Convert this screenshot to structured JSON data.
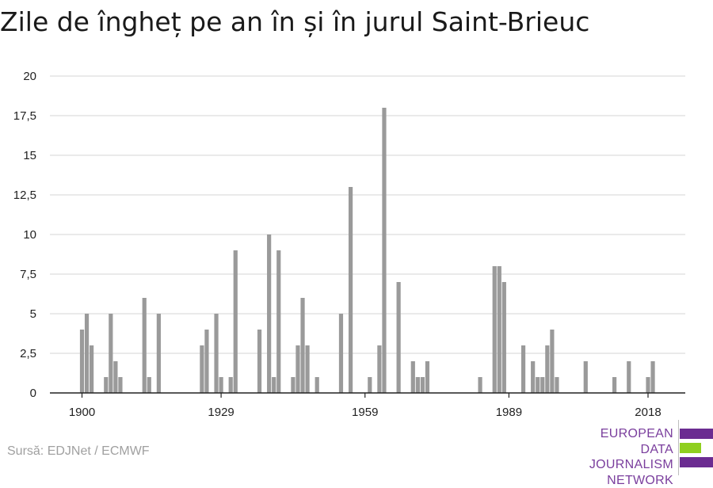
{
  "title": "Zile de îngheț pe an în și în jurul Saint-Brieuc",
  "source": "Sursă: EDJNet / ECMWF",
  "logo": {
    "lines": [
      "EUROPEAN",
      "DATA JOURNALISM",
      "NETWORK"
    ],
    "colors": [
      "#6b2c91",
      "#8fcf1f",
      "#6b2c91"
    ]
  },
  "colors": {
    "bar": "#9a9a9a",
    "grid": "#dddddd",
    "axis": "#222222",
    "text": "#222222"
  },
  "chart_data": {
    "type": "bar",
    "title": "Zile de îngheț pe an în și în jurul Saint-Brieuc",
    "xlabel": "",
    "ylabel": "",
    "xlim": [
      1894,
      2024
    ],
    "ylim": [
      0,
      20
    ],
    "yticks": [
      0,
      2.5,
      5,
      7.5,
      10,
      12.5,
      15,
      17.5,
      20
    ],
    "ytick_labels": [
      "0",
      "2,5",
      "5",
      "7,5",
      "10",
      "12,5",
      "15",
      "17,5",
      "20"
    ],
    "xticks": [
      1900,
      1929,
      1959,
      1989,
      2018
    ],
    "grid": true,
    "legend": "none",
    "x": [
      1900,
      1901,
      1902,
      1903,
      1904,
      1905,
      1906,
      1907,
      1908,
      1909,
      1910,
      1911,
      1912,
      1913,
      1914,
      1915,
      1916,
      1917,
      1918,
      1919,
      1920,
      1921,
      1922,
      1923,
      1924,
      1925,
      1926,
      1927,
      1928,
      1929,
      1930,
      1931,
      1932,
      1933,
      1934,
      1935,
      1936,
      1937,
      1938,
      1939,
      1940,
      1941,
      1942,
      1943,
      1944,
      1945,
      1946,
      1947,
      1948,
      1949,
      1950,
      1951,
      1952,
      1953,
      1954,
      1955,
      1956,
      1957,
      1958,
      1959,
      1960,
      1961,
      1962,
      1963,
      1964,
      1965,
      1966,
      1967,
      1968,
      1969,
      1970,
      1971,
      1972,
      1973,
      1974,
      1975,
      1976,
      1977,
      1978,
      1979,
      1980,
      1981,
      1982,
      1983,
      1984,
      1985,
      1986,
      1987,
      1988,
      1989,
      1990,
      1991,
      1992,
      1993,
      1994,
      1995,
      1996,
      1997,
      1998,
      1999,
      2000,
      2001,
      2002,
      2003,
      2004,
      2005,
      2006,
      2007,
      2008,
      2009,
      2010,
      2011,
      2012,
      2013,
      2014,
      2015,
      2016,
      2017,
      2018,
      2019,
      2020,
      2021,
      2022,
      2023
    ],
    "values": [
      4,
      5,
      3,
      0,
      0,
      1,
      5,
      2,
      1,
      0,
      0,
      0,
      0,
      6,
      1,
      0,
      5,
      0,
      0,
      0,
      0,
      0,
      0,
      0,
      0,
      3,
      4,
      0,
      5,
      1,
      0,
      1,
      9,
      0,
      0,
      0,
      0,
      4,
      0,
      10,
      1,
      9,
      0,
      0,
      1,
      3,
      6,
      3,
      0,
      1,
      0,
      0,
      0,
      0,
      5,
      0,
      13,
      0,
      0,
      0,
      1,
      0,
      3,
      18,
      0,
      0,
      7,
      0,
      0,
      2,
      1,
      1,
      2,
      0,
      0,
      0,
      0,
      0,
      0,
      0,
      0,
      0,
      0,
      1,
      0,
      0,
      8,
      8,
      7,
      0,
      0,
      0,
      3,
      0,
      2,
      1,
      1,
      3,
      4,
      1,
      0,
      0,
      0,
      0,
      0,
      2,
      0,
      0,
      0,
      0,
      0,
      1,
      0,
      0,
      2,
      0,
      0,
      0,
      1,
      2,
      0,
      0,
      0,
      0
    ]
  }
}
